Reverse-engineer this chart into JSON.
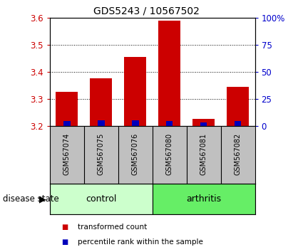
{
  "title": "GDS5243 / 10567502",
  "samples": [
    "GSM567074",
    "GSM567075",
    "GSM567076",
    "GSM567080",
    "GSM567081",
    "GSM567082"
  ],
  "red_values": [
    3.325,
    3.375,
    3.455,
    3.59,
    3.225,
    3.345
  ],
  "blue_values": [
    0.018,
    0.022,
    0.02,
    0.018,
    0.014,
    0.018
  ],
  "ylim_left": [
    3.2,
    3.6
  ],
  "ylim_right": [
    0,
    100
  ],
  "yticks_left": [
    3.2,
    3.3,
    3.4,
    3.5,
    3.6
  ],
  "yticks_right": [
    0,
    25,
    50,
    75,
    100
  ],
  "ytick_labels_right": [
    "0",
    "25",
    "50",
    "75",
    "100%"
  ],
  "bar_baseline": 3.2,
  "bar_width": 0.65,
  "blue_bar_width": 0.2,
  "group_labels": [
    "control",
    "arthritis"
  ],
  "group_ranges": [
    [
      0,
      2
    ],
    [
      3,
      5
    ]
  ],
  "group_colors_light": [
    "#ccffcc",
    "#66ee66"
  ],
  "red_color": "#cc0000",
  "blue_color": "#0000bb",
  "bg_color": "#c0c0c0",
  "plot_bg": "#ffffff",
  "left_tick_color": "#cc0000",
  "right_tick_color": "#0000cc",
  "legend_red_label": "transformed count",
  "legend_blue_label": "percentile rank within the sample",
  "disease_state_label": "disease state"
}
